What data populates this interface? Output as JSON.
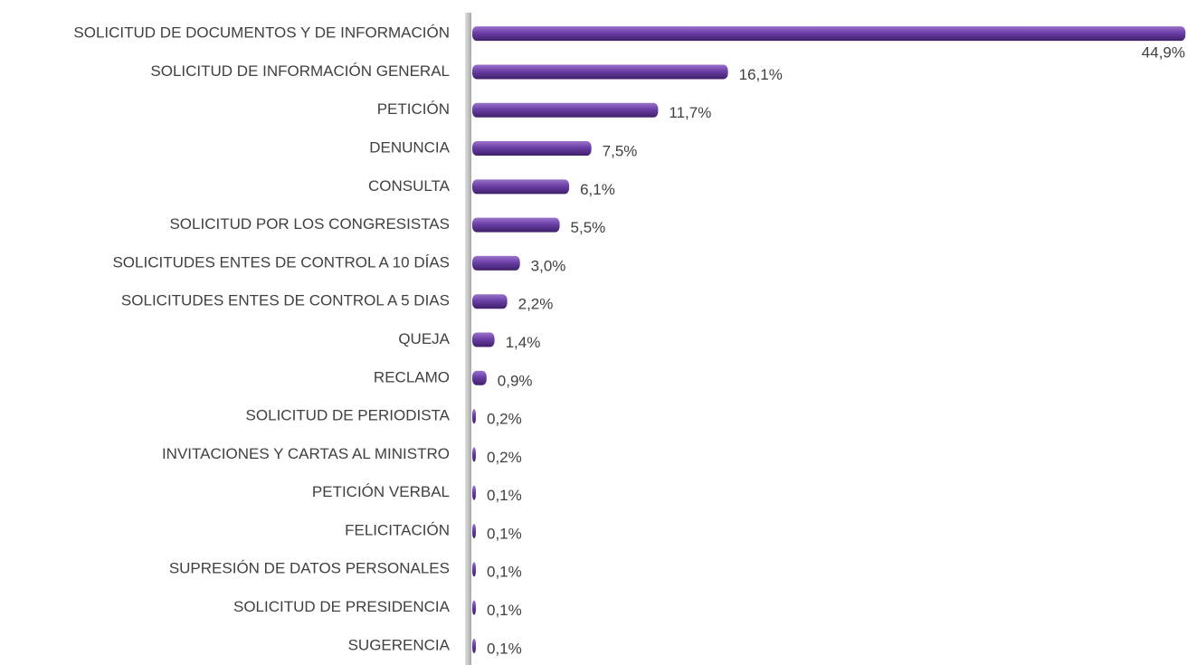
{
  "chart_data": {
    "type": "bar",
    "orientation": "horizontal",
    "color": "#6b3fa6",
    "xlim": [
      0,
      45
    ],
    "categories": [
      "SOLICITUD DE DOCUMENTOS Y DE INFORMACIÓN",
      "SOLICITUD DE INFORMACIÓN GENERAL",
      "PETICIÓN",
      "DENUNCIA",
      "CONSULTA",
      "SOLICITUD POR LOS CONGRESISTAS",
      "SOLICITUDES ENTES DE CONTROL A 10 DÍAS",
      "SOLICITUDES ENTES DE CONTROL A 5 DIAS",
      "QUEJA",
      "RECLAMO",
      "SOLICITUD DE PERIODISTA",
      "INVITACIONES Y CARTAS AL MINISTRO",
      "PETICIÓN VERBAL",
      "FELICITACIÓN",
      "SUPRESIÓN DE DATOS PERSONALES",
      "SOLICITUD DE PRESIDENCIA",
      "SUGERENCIA"
    ],
    "values": [
      44.9,
      16.1,
      11.7,
      7.5,
      6.1,
      5.5,
      3.0,
      2.2,
      1.4,
      0.9,
      0.2,
      0.2,
      0.1,
      0.1,
      0.1,
      0.1,
      0.1
    ],
    "value_labels": [
      "44,9%",
      "16,1%",
      "11,7%",
      "7,5%",
      "6,1%",
      "5,5%",
      "3,0%",
      "2,2%",
      "1,4%",
      "0,9%",
      "0,2%",
      "0,2%",
      "0,1%",
      "0,1%",
      "0,1%",
      "0,1%",
      "0,1%"
    ]
  }
}
